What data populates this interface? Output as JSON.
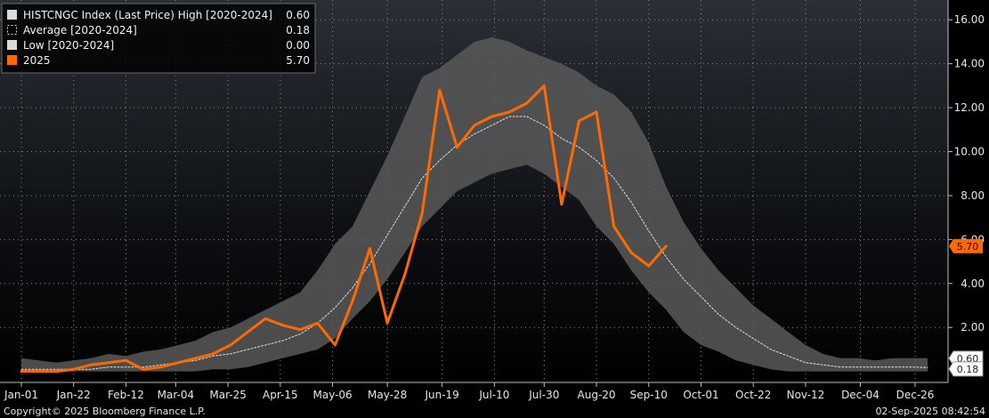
{
  "chart_data": {
    "type": "line",
    "title": "",
    "xlabel": "",
    "ylabel": "",
    "y_ticks": [
      "2.00",
      "4.00",
      "6.00",
      "8.00",
      "10.00",
      "12.00",
      "14.00",
      "16.00"
    ],
    "ylim": [
      -0.5,
      16.9
    ],
    "x_ticks": [
      {
        "label": "Jan-01",
        "day": 1
      },
      {
        "label": "Jan-22",
        "day": 22
      },
      {
        "label": "Feb-12",
        "day": 43
      },
      {
        "label": "Mar-04",
        "day": 63
      },
      {
        "label": "Mar-25",
        "day": 84
      },
      {
        "label": "Apr-15",
        "day": 105
      },
      {
        "label": "May-06",
        "day": 126
      },
      {
        "label": "May-28",
        "day": 148
      },
      {
        "label": "Jun-19",
        "day": 170
      },
      {
        "label": "Jul-10",
        "day": 191
      },
      {
        "label": "Jul-30",
        "day": 211
      },
      {
        "label": "Aug-20",
        "day": 232
      },
      {
        "label": "Sep-10",
        "day": 253
      },
      {
        "label": "Oct-01",
        "day": 274
      },
      {
        "label": "Oct-22",
        "day": 295
      },
      {
        "label": "Nov-12",
        "day": 316
      },
      {
        "label": "Dec-04",
        "day": 338
      },
      {
        "label": "Dec-26",
        "day": 360
      }
    ],
    "grid": true,
    "legend_position": "top-left",
    "legend": [
      {
        "label": "HISTCNGC Index (Last Price) High [2020-2024]",
        "value": "0.60"
      },
      {
        "label": "Average [2020-2024]",
        "value": "0.18"
      },
      {
        "label": "Low [2020-2024]",
        "value": "0.00"
      },
      {
        "label": "2025",
        "value": "5.70"
      }
    ],
    "last_value_badges": [
      {
        "value": "5.70",
        "y": 5.7,
        "color": "#ff6a00"
      },
      {
        "value": "0.60",
        "y": 0.6,
        "color": "#d9d9d9"
      },
      {
        "value": "0.18",
        "y": 0.18,
        "color": "#d9d9d9"
      }
    ],
    "colors": {
      "range_fill": "#595959",
      "average": "#e0e0e0",
      "current": "#ff6a00",
      "grid": "#8a8a8a",
      "background_top": "#2a2f36",
      "background_bottom": "#000000"
    },
    "days": [
      1,
      8,
      15,
      22,
      29,
      36,
      43,
      50,
      57,
      64,
      71,
      78,
      85,
      92,
      99,
      106,
      113,
      120,
      127,
      134,
      141,
      148,
      155,
      162,
      169,
      176,
      183,
      190,
      197,
      204,
      211,
      218,
      225,
      232,
      239,
      246,
      253,
      260,
      267,
      274,
      281,
      288,
      295,
      302,
      309,
      316,
      323,
      330,
      337,
      344,
      351,
      358,
      365
    ],
    "series": [
      {
        "name": "High [2020-2024]",
        "values": [
          0.6,
          0.5,
          0.4,
          0.5,
          0.6,
          0.8,
          0.7,
          0.9,
          1.0,
          1.2,
          1.4,
          1.8,
          2.0,
          2.4,
          2.8,
          3.2,
          3.6,
          4.6,
          5.8,
          6.6,
          8.2,
          9.8,
          11.6,
          13.4,
          13.8,
          14.4,
          15.0,
          15.2,
          15.0,
          14.6,
          14.3,
          14.0,
          13.6,
          13.0,
          12.6,
          11.8,
          10.4,
          8.4,
          6.8,
          5.6,
          4.6,
          3.8,
          3.0,
          2.4,
          1.8,
          1.2,
          0.8,
          0.6,
          0.6,
          0.5,
          0.6,
          0.6,
          0.6
        ]
      },
      {
        "name": "Average [2020-2024]",
        "values": [
          0.1,
          0.1,
          0.1,
          0.1,
          0.1,
          0.2,
          0.2,
          0.2,
          0.3,
          0.4,
          0.5,
          0.7,
          0.8,
          1.0,
          1.2,
          1.4,
          1.7,
          2.2,
          2.9,
          3.8,
          4.9,
          6.2,
          7.5,
          8.8,
          9.6,
          10.3,
          10.8,
          11.2,
          11.6,
          11.6,
          11.2,
          10.6,
          10.2,
          9.6,
          8.8,
          7.7,
          6.4,
          5.2,
          4.2,
          3.4,
          2.6,
          2.0,
          1.5,
          1.0,
          0.7,
          0.4,
          0.3,
          0.2,
          0.2,
          0.2,
          0.2,
          0.2,
          0.18
        ]
      },
      {
        "name": "Low [2020-2024]",
        "values": [
          0.0,
          0.0,
          0.0,
          0.0,
          0.0,
          0.0,
          0.0,
          0.0,
          0.0,
          0.0,
          0.0,
          0.1,
          0.1,
          0.2,
          0.4,
          0.6,
          0.8,
          1.0,
          1.5,
          2.4,
          3.2,
          4.2,
          5.4,
          6.6,
          7.4,
          8.2,
          8.6,
          9.0,
          9.2,
          9.4,
          9.0,
          8.4,
          7.8,
          6.6,
          5.8,
          4.6,
          3.6,
          2.8,
          1.8,
          1.2,
          0.9,
          0.5,
          0.3,
          0.1,
          0.0,
          0.0,
          0.0,
          0.0,
          0.0,
          0.0,
          0.0,
          0.0,
          0.0
        ]
      },
      {
        "name": "2025",
        "values": [
          0.0,
          0.0,
          0.0,
          0.1,
          0.3,
          0.4,
          0.5,
          0.1,
          0.2,
          0.4,
          0.6,
          0.8,
          1.2,
          1.8,
          2.4,
          2.1,
          1.9,
          2.2,
          1.2,
          3.2,
          5.6,
          2.2,
          4.4,
          7.2,
          12.8,
          10.2,
          11.2,
          11.6,
          11.8,
          12.2,
          13.0,
          7.6,
          11.4,
          11.8,
          6.6,
          5.4,
          4.8,
          5.7
        ]
      }
    ]
  },
  "footer": {
    "copyright": "Copyright© 2025 Bloomberg Finance L.P.",
    "timestamp": "02-Sep-2025 08:42:54"
  }
}
